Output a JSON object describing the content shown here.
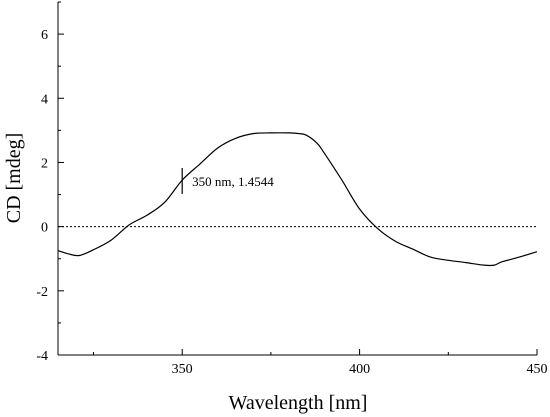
{
  "chart_data": {
    "type": "line",
    "xlabel": "Wavelength [nm]",
    "ylabel": "CD [mdeg]",
    "xlim": [
      315,
      450
    ],
    "ylim": [
      -4,
      7
    ],
    "xticks": [
      350,
      400,
      450
    ],
    "xtick_labels": [
      "350",
      "400",
      "450"
    ],
    "yticks": [
      -4,
      -2,
      0,
      2,
      4,
      6
    ],
    "ytick_labels": [
      "-4",
      "-2",
      "0",
      "2",
      "4",
      "6"
    ],
    "grid": false,
    "zero_reference_line": "dotted",
    "series": [
      {
        "color": "#000000",
        "x": [
          315,
          318,
          321,
          325,
          330,
          335,
          340,
          345,
          350,
          355,
          360,
          365,
          370,
          375,
          380,
          383,
          385,
          388,
          390,
          395,
          400,
          405,
          410,
          415,
          420,
          425,
          430,
          435,
          438,
          440,
          445,
          450
        ],
        "y": [
          -0.75,
          -0.85,
          -0.9,
          -0.72,
          -0.42,
          0.05,
          0.35,
          0.75,
          1.45,
          1.95,
          2.45,
          2.75,
          2.9,
          2.92,
          2.92,
          2.9,
          2.85,
          2.6,
          2.3,
          1.45,
          0.55,
          -0.05,
          -0.45,
          -0.7,
          -0.95,
          -1.05,
          -1.12,
          -1.2,
          -1.2,
          -1.1,
          -0.95,
          -0.78
        ]
      }
    ],
    "annotations": [
      {
        "x": 350,
        "y": 1.4544,
        "text": "350 nm, 1.4544"
      }
    ]
  }
}
